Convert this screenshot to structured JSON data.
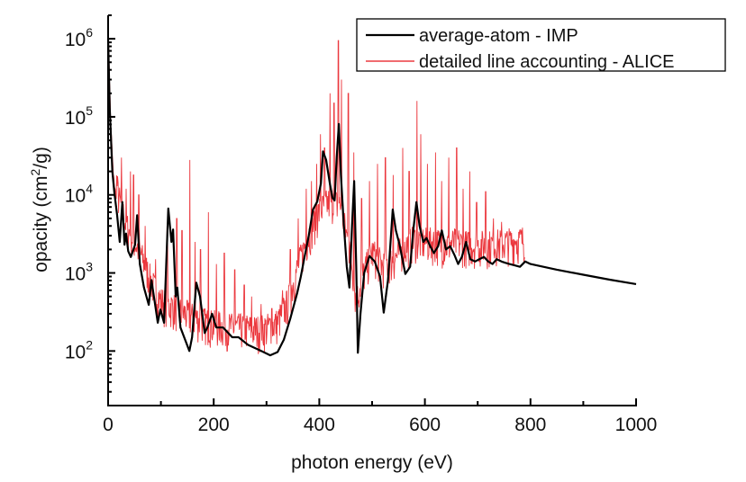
{
  "chart_data": {
    "type": "line",
    "title": "",
    "xlabel": "photon energy (eV)",
    "ylabel": "opacity (cm2/g)",
    "ylabel_parts": {
      "pre": "opacity (cm",
      "sup": "2",
      "post": "/g)"
    },
    "xscale": "linear",
    "yscale": "log",
    "xlim": [
      0,
      1000
    ],
    "ylim": [
      20,
      2000000
    ],
    "grid": false,
    "x_ticks": [
      0,
      200,
      400,
      600,
      800,
      1000
    ],
    "x_tick_labels": [
      "0",
      "200",
      "400",
      "600",
      "800",
      "1000"
    ],
    "x_minor_ticks": [
      100,
      300,
      500,
      700,
      900
    ],
    "y_ticks": [
      100,
      1000,
      10000,
      100000,
      1000000
    ],
    "y_tick_labels": [
      {
        "base": "10",
        "exp": "2"
      },
      {
        "base": "10",
        "exp": "3"
      },
      {
        "base": "10",
        "exp": "4"
      },
      {
        "base": "10",
        "exp": "5"
      },
      {
        "base": "10",
        "exp": "6"
      }
    ],
    "legend_position": "top-right",
    "series": [
      {
        "name": "average-atom - IMP",
        "color": "#000000",
        "x": [
          0,
          3,
          8,
          12,
          17,
          22,
          27,
          31,
          34,
          38,
          43,
          51,
          55,
          60,
          68,
          77,
          82,
          89,
          94,
          99,
          106,
          114,
          120,
          123,
          128,
          131,
          137,
          154,
          159,
          167,
          174,
          183,
          188,
          197,
          205,
          218,
          235,
          247,
          265,
          290,
          307,
          321,
          333,
          345,
          358,
          365,
          372,
          380,
          388,
          396,
          403,
          407,
          413,
          420,
          425,
          429,
          433,
          437,
          441,
          446,
          452,
          457,
          462,
          466,
          470,
          473,
          478,
          485,
          495,
          505,
          515,
          522,
          530,
          539,
          545,
          552,
          563,
          572,
          578,
          584,
          590,
          597,
          603,
          610,
          617,
          625,
          632,
          640,
          648,
          656,
          663,
          670,
          678,
          686,
          695,
          703,
          712,
          720,
          728,
          736,
          745,
          752,
          760,
          770,
          780,
          790,
          800,
          850,
          900,
          950,
          1000
        ],
        "y": [
          1000000,
          130000,
          20000,
          10500,
          5500,
          2500,
          8100,
          2300,
          3200,
          1900,
          1600,
          2300,
          5500,
          1300,
          650,
          390,
          810,
          390,
          230,
          340,
          230,
          6700,
          2500,
          3600,
          500,
          650,
          200,
          100,
          150,
          750,
          500,
          170,
          200,
          300,
          200,
          200,
          150,
          150,
          120,
          100,
          88,
          97,
          140,
          260,
          550,
          900,
          1600,
          3000,
          6500,
          8200,
          14000,
          36000,
          28000,
          14000,
          9200,
          8500,
          30000,
          81000,
          18000,
          4500,
          1200,
          650,
          4000,
          15000,
          1200,
          95,
          300,
          1000,
          1650,
          1400,
          900,
          310,
          800,
          6500,
          3500,
          2300,
          970,
          1200,
          3500,
          8100,
          4000,
          2500,
          2800,
          2200,
          1800,
          2200,
          3500,
          2000,
          2200,
          1700,
          1300,
          1600,
          2500,
          1500,
          1400,
          1500,
          1600,
          1400,
          1300,
          1500,
          1400,
          1350,
          1300,
          1250,
          1200,
          1400,
          1300,
          1100,
          950,
          820,
          720
        ]
      },
      {
        "name": "detailed line accounting - ALICE",
        "color": "#e8141b",
        "x_range": [
          0,
          790
        ],
        "note": "dense line spectrum; envelope values",
        "baseline": {
          "x": [
            0,
            5,
            10,
            20,
            30,
            40,
            50,
            60,
            70,
            80,
            90,
            100,
            120,
            140,
            160,
            180,
            200,
            220,
            240,
            260,
            280,
            300,
            320,
            340,
            360,
            380,
            400,
            420,
            440,
            460,
            470,
            480,
            500,
            520,
            540,
            560,
            580,
            600,
            620,
            640,
            660,
            680,
            700,
            720,
            740,
            760,
            780,
            790
          ],
          "y": [
            1200000,
            70000,
            15000,
            4500,
            2500,
            1600,
            1200,
            900,
            600,
            400,
            280,
            210,
            180,
            150,
            130,
            115,
            105,
            100,
            95,
            95,
            90,
            95,
            110,
            200,
            600,
            1500,
            3000,
            4000,
            3500,
            800,
            200,
            400,
            900,
            600,
            700,
            1000,
            1300,
            1200,
            1200,
            1100,
            1200,
            1100,
            1100,
            1100,
            1150,
            1200,
            1250,
            1300
          ]
        },
        "peaks": [
          {
            "x": 25,
            "y": 30000
          },
          {
            "x": 34,
            "y": 12000
          },
          {
            "x": 42,
            "y": 20000
          },
          {
            "x": 48,
            "y": 18000
          },
          {
            "x": 58,
            "y": 10000
          },
          {
            "x": 70,
            "y": 4000
          },
          {
            "x": 90,
            "y": 1500
          },
          {
            "x": 112,
            "y": 4000
          },
          {
            "x": 130,
            "y": 5000
          },
          {
            "x": 140,
            "y": 3500
          },
          {
            "x": 155,
            "y": 28000
          },
          {
            "x": 165,
            "y": 2500
          },
          {
            "x": 175,
            "y": 2000
          },
          {
            "x": 190,
            "y": 6000
          },
          {
            "x": 205,
            "y": 1300
          },
          {
            "x": 220,
            "y": 1800
          },
          {
            "x": 240,
            "y": 1100
          },
          {
            "x": 258,
            "y": 700
          },
          {
            "x": 272,
            "y": 500
          },
          {
            "x": 290,
            "y": 400
          },
          {
            "x": 310,
            "y": 350
          },
          {
            "x": 330,
            "y": 600
          },
          {
            "x": 345,
            "y": 2000
          },
          {
            "x": 360,
            "y": 5000
          },
          {
            "x": 375,
            "y": 12000
          },
          {
            "x": 385,
            "y": 15000
          },
          {
            "x": 395,
            "y": 25000
          },
          {
            "x": 402,
            "y": 60000
          },
          {
            "x": 410,
            "y": 40000
          },
          {
            "x": 420,
            "y": 200000
          },
          {
            "x": 428,
            "y": 150000
          },
          {
            "x": 436,
            "y": 950000
          },
          {
            "x": 442,
            "y": 300000
          },
          {
            "x": 455,
            "y": 200000
          },
          {
            "x": 465,
            "y": 35000
          },
          {
            "x": 480,
            "y": 9000
          },
          {
            "x": 495,
            "y": 15000
          },
          {
            "x": 510,
            "y": 25000
          },
          {
            "x": 525,
            "y": 30000
          },
          {
            "x": 540,
            "y": 18000
          },
          {
            "x": 558,
            "y": 40000
          },
          {
            "x": 570,
            "y": 20000
          },
          {
            "x": 585,
            "y": 160000
          },
          {
            "x": 592,
            "y": 60000
          },
          {
            "x": 605,
            "y": 25000
          },
          {
            "x": 620,
            "y": 35000
          },
          {
            "x": 632,
            "y": 15000
          },
          {
            "x": 645,
            "y": 30000
          },
          {
            "x": 660,
            "y": 40000
          },
          {
            "x": 672,
            "y": 12000
          },
          {
            "x": 685,
            "y": 20000
          },
          {
            "x": 698,
            "y": 8000
          },
          {
            "x": 715,
            "y": 11000
          },
          {
            "x": 730,
            "y": 5000
          },
          {
            "x": 745,
            "y": 4500
          },
          {
            "x": 760,
            "y": 3000
          },
          {
            "x": 772,
            "y": 2500
          },
          {
            "x": 785,
            "y": 1700
          }
        ]
      }
    ]
  }
}
